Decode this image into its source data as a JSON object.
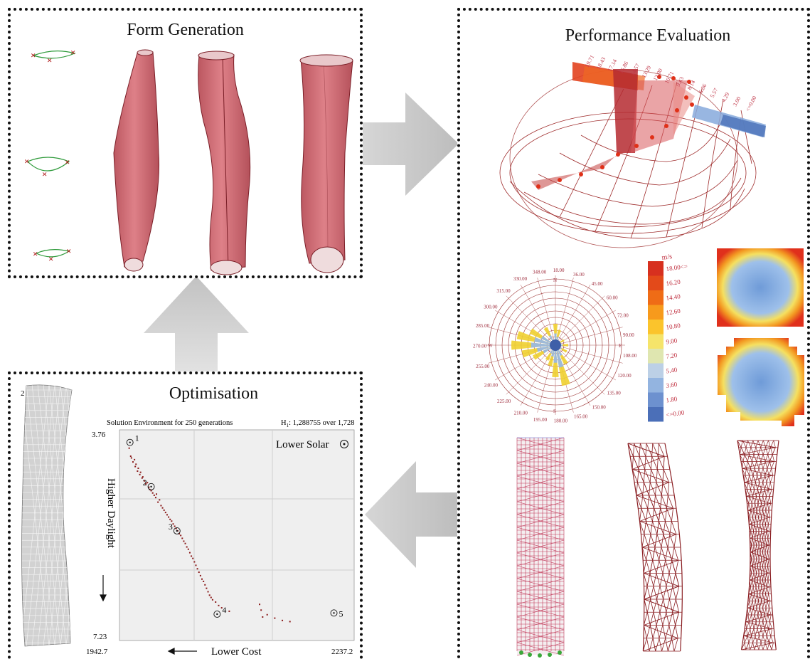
{
  "form_panel": {
    "title": "Form Generation"
  },
  "perf_panel": {
    "title": "Performance Evaluation",
    "sun_labels": [
      "19.71",
      "18.43",
      "17.14",
      "15.86",
      "14.57",
      "13.29",
      "12.00",
      "10.71",
      "9.43",
      "8.14",
      "6.86",
      "5.57",
      "4.29",
      "3.00",
      "<=0.00"
    ],
    "wind_rose": {
      "angles": [
        "348.00",
        "18.00",
        "36.00",
        "45.00",
        "60.00",
        "72.00",
        "90.00",
        "108.00",
        "120.00",
        "135.00",
        "150.00",
        "165.00",
        "180.00",
        "195.00",
        "210.00",
        "225.00",
        "240.00",
        "255.00",
        "270.00",
        "285.00",
        "300.00",
        "315.00",
        "330.00"
      ],
      "cardinals": [
        "N",
        "E",
        "S",
        "W"
      ]
    },
    "wind_legend": {
      "unit": "m/s",
      "labels": [
        "18.00<=",
        "16.20",
        "14.40",
        "12.60",
        "10.80",
        "9.00",
        "7.20",
        "5.40",
        "3.60",
        "1.80",
        "<=0.00"
      ],
      "colors": [
        "#d7301f",
        "#e34a1a",
        "#ef6c16",
        "#f79a1c",
        "#fbc42c",
        "#f5e46a",
        "#dfe6b0",
        "#bcd0e6",
        "#93b4e0",
        "#6d91cf",
        "#4b6fb8"
      ]
    }
  },
  "opt_panel": {
    "title": "Optimisation",
    "tower_label": "2",
    "chart_title": "Solution Environment for 250 generations",
    "stat_prefix": "H",
    "stat_sub": "1",
    "stat_suffix": ": 1,288755 over 1,728",
    "legend": "Lower Solar",
    "y_axis_label": "Higher   Daylight",
    "x_axis_label": "Lower   Cost"
  },
  "chart_data": {
    "type": "scatter",
    "title": "Solution Environment for 250 generations",
    "xlabel": "Lower Cost",
    "ylabel": "Higher Daylight",
    "xlim": [
      1942.7,
      2237.2
    ],
    "ylim": [
      3.76,
      7.23
    ],
    "y_inverted": true,
    "x_tick_labels": [
      "1942.7",
      "2237.2"
    ],
    "y_tick_labels": [
      "3.76",
      "7.23"
    ],
    "grid": true,
    "legend": "top-right",
    "highlights": [
      {
        "label": "1",
        "x": 1949,
        "y": 3.88
      },
      {
        "label": "2",
        "x": 1977,
        "y": 4.65
      },
      {
        "label": "3",
        "x": 2011,
        "y": 5.42
      },
      {
        "label": "4",
        "x": 2064,
        "y": 6.87
      },
      {
        "label": "5",
        "x": 2218,
        "y": 6.85
      }
    ],
    "x": [
      1948,
      1950,
      1951,
      1953,
      1955,
      1956,
      1957,
      1959,
      1960,
      1962,
      1963,
      1965,
      1966,
      1968,
      1970,
      1972,
      1974,
      1975,
      1977,
      1979,
      1981,
      1983,
      1984,
      1986,
      1988,
      1990,
      1992,
      1994,
      1996,
      1998,
      2000,
      2002,
      2004,
      2006,
      2008,
      2010,
      2012,
      2014,
      2016,
      2018,
      2020,
      2022,
      2024,
      2026,
      2028,
      2030,
      2032,
      2034,
      2036,
      2038,
      2040,
      2042,
      2044,
      2046,
      2048,
      2050,
      2052,
      2054,
      2056,
      2058,
      2062,
      2066,
      2070,
      2080,
      2120,
      2122,
      2124,
      2130,
      2140,
      2150,
      2160
    ],
    "y": [
      3.98,
      4.12,
      4.15,
      4.22,
      4.18,
      4.3,
      4.26,
      4.38,
      4.33,
      4.44,
      4.4,
      4.5,
      4.48,
      4.55,
      4.6,
      4.58,
      4.66,
      4.7,
      4.72,
      4.76,
      4.8,
      4.84,
      4.78,
      4.92,
      4.88,
      4.98,
      5.02,
      5.06,
      5.1,
      5.14,
      5.18,
      5.22,
      5.25,
      5.3,
      5.34,
      5.38,
      5.42,
      5.47,
      5.5,
      5.55,
      5.6,
      5.64,
      5.7,
      5.74,
      5.8,
      5.86,
      5.9,
      5.96,
      6.02,
      6.08,
      6.14,
      6.2,
      6.26,
      6.3,
      6.36,
      6.42,
      6.48,
      6.54,
      6.58,
      6.62,
      6.66,
      6.72,
      6.76,
      6.82,
      6.7,
      6.8,
      6.92,
      6.88,
      6.94,
      6.98,
      7.0
    ]
  }
}
